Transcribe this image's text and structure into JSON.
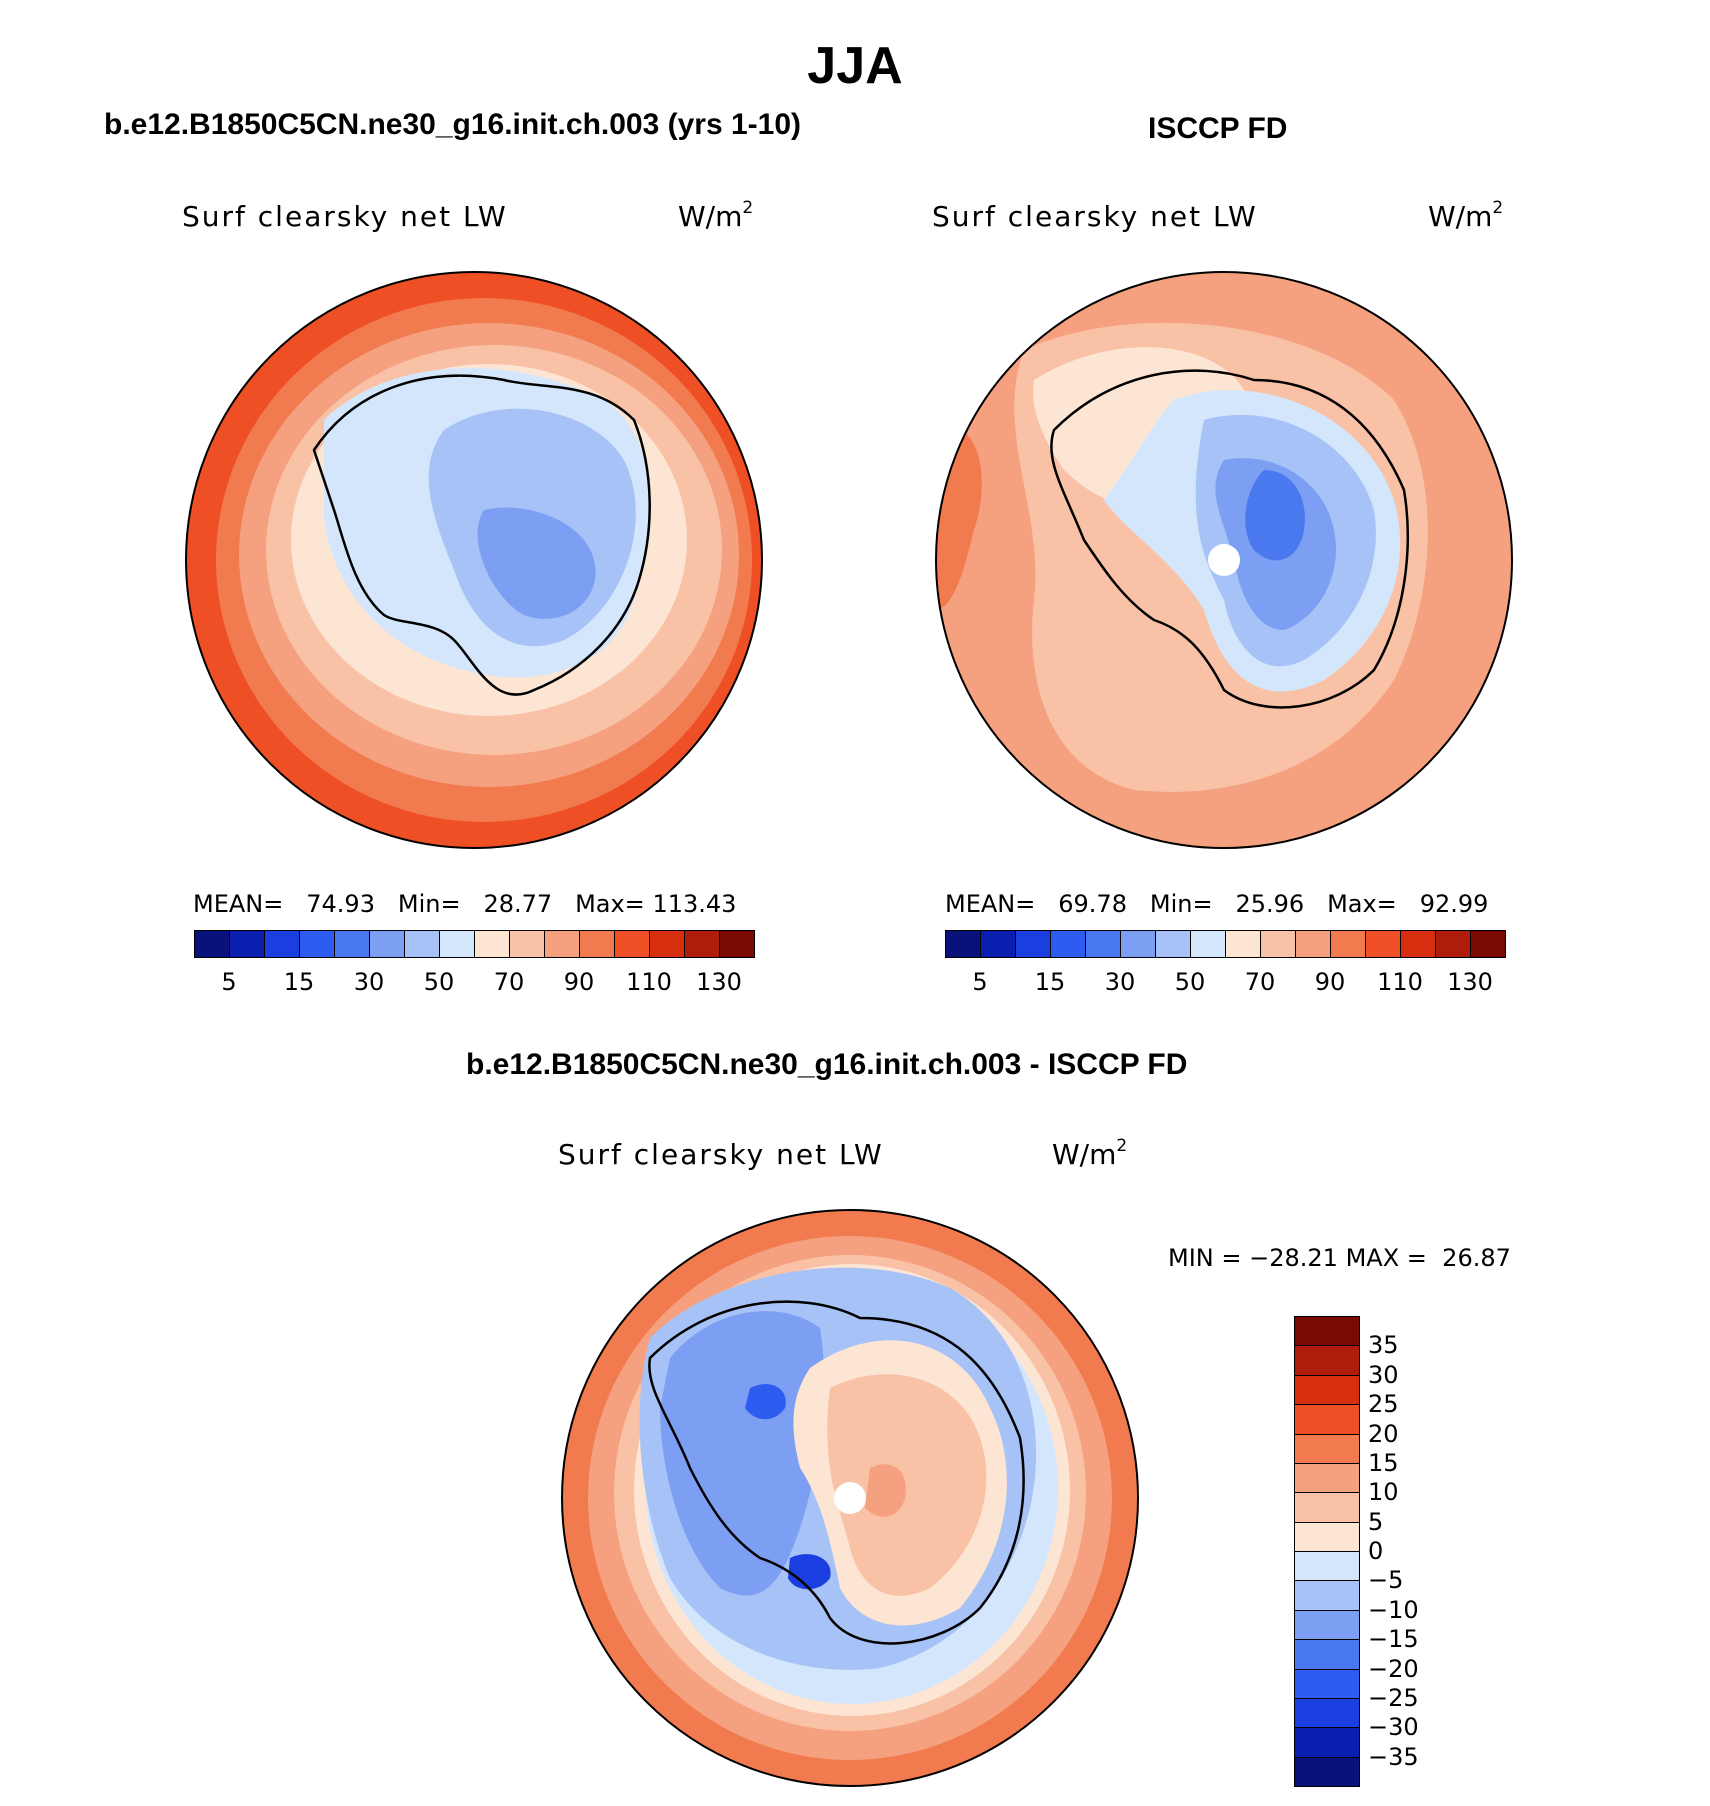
{
  "page": {
    "title": "JJA"
  },
  "colors": {
    "absolute_scale": [
      "#08127a",
      "#0a1fb0",
      "#1b3ee0",
      "#2f5cf0",
      "#4a78ee",
      "#7d9ff3",
      "#a7c2f6",
      "#d4e6fb",
      "#fde5d4",
      "#f9c2a7",
      "#f5a07e",
      "#f27a4f",
      "#ef4f24",
      "#d82e10",
      "#b01c0b",
      "#7a0a04"
    ],
    "difference_scale": [
      "#08127a",
      "#0a1fb0",
      "#1b3ee0",
      "#2f5cf0",
      "#4a78ee",
      "#7d9ff3",
      "#a7c2f6",
      "#d4e6fb",
      "#fde5d4",
      "#f9c2a7",
      "#f5a07e",
      "#f27a4f",
      "#ef4f24",
      "#d82e10",
      "#b01c0b",
      "#7a0a04"
    ]
  },
  "panels": [
    {
      "id": "model",
      "title": "b.e12.B1850C5CN.ne30_g16.init.ch.003 (yrs 1-10)",
      "variable": "Surf clearsky net LW",
      "units_base": "W/m",
      "units_exp": "2",
      "stats": {
        "mean_label": "MEAN=",
        "mean": "74.93",
        "min_label": "Min=",
        "min": "28.77",
        "max_label": "Max=",
        "max": "113.43"
      },
      "colorbar_ticks": [
        "5",
        "15",
        "30",
        "50",
        "70",
        "90",
        "110",
        "130"
      ]
    },
    {
      "id": "obs",
      "title": "ISCCP FD",
      "variable": "Surf clearsky net LW",
      "units_base": "W/m",
      "units_exp": "2",
      "stats": {
        "mean_label": "MEAN=",
        "mean": "69.78",
        "min_label": "Min=",
        "min": "25.96",
        "max_label": "Max=",
        "max": "92.99"
      },
      "colorbar_ticks": [
        "5",
        "15",
        "30",
        "50",
        "70",
        "90",
        "110",
        "130"
      ]
    },
    {
      "id": "diff",
      "title": "b.e12.B1850C5CN.ne30_g16.init.ch.003 - ISCCP FD",
      "variable": "Surf clearsky net LW",
      "units_base": "W/m",
      "units_exp": "2",
      "stats": {
        "min_label": "MIN =",
        "min": "−28.21",
        "max_label": "MAX =",
        "max": "26.87"
      },
      "colorbar_ticks": [
        "35",
        "30",
        "25",
        "20",
        "15",
        "10",
        "5",
        "0",
        "−5",
        "−10",
        "−15",
        "−20",
        "−25",
        "−30",
        "−35"
      ]
    }
  ],
  "chart_data": [
    {
      "type": "heatmap",
      "projection": "south polar stereographic",
      "title": "b.e12.B1850C5CN.ne30_g16.init.ch.003 (yrs 1-10)",
      "variable": "Surf clearsky net LW",
      "units": "W/m2",
      "mean": 74.93,
      "min": 28.77,
      "max": 113.43,
      "contour_levels": [
        5,
        10,
        15,
        20,
        30,
        40,
        50,
        60,
        70,
        80,
        90,
        100,
        110,
        120,
        130
      ],
      "colorbar_tick_labels": [
        5,
        15,
        30,
        50,
        70,
        90,
        110,
        130
      ]
    },
    {
      "type": "heatmap",
      "projection": "south polar stereographic",
      "title": "ISCCP FD",
      "variable": "Surf clearsky net LW",
      "units": "W/m2",
      "mean": 69.78,
      "min": 25.96,
      "max": 92.99,
      "contour_levels": [
        5,
        10,
        15,
        20,
        30,
        40,
        50,
        60,
        70,
        80,
        90,
        100,
        110,
        120,
        130
      ],
      "colorbar_tick_labels": [
        5,
        15,
        30,
        50,
        70,
        90,
        110,
        130
      ]
    },
    {
      "type": "heatmap",
      "projection": "south polar stereographic",
      "title": "b.e12.B1850C5CN.ne30_g16.init.ch.003 - ISCCP FD",
      "variable": "Surf clearsky net LW",
      "units": "W/m2",
      "min": -28.21,
      "max": 26.87,
      "contour_levels": [
        -35,
        -30,
        -25,
        -20,
        -15,
        -10,
        -5,
        0,
        5,
        10,
        15,
        20,
        25,
        30,
        35
      ],
      "colorbar_tick_labels": [
        35,
        30,
        25,
        20,
        15,
        10,
        5,
        0,
        -5,
        -10,
        -15,
        -20,
        -25,
        -30,
        -35
      ]
    }
  ]
}
